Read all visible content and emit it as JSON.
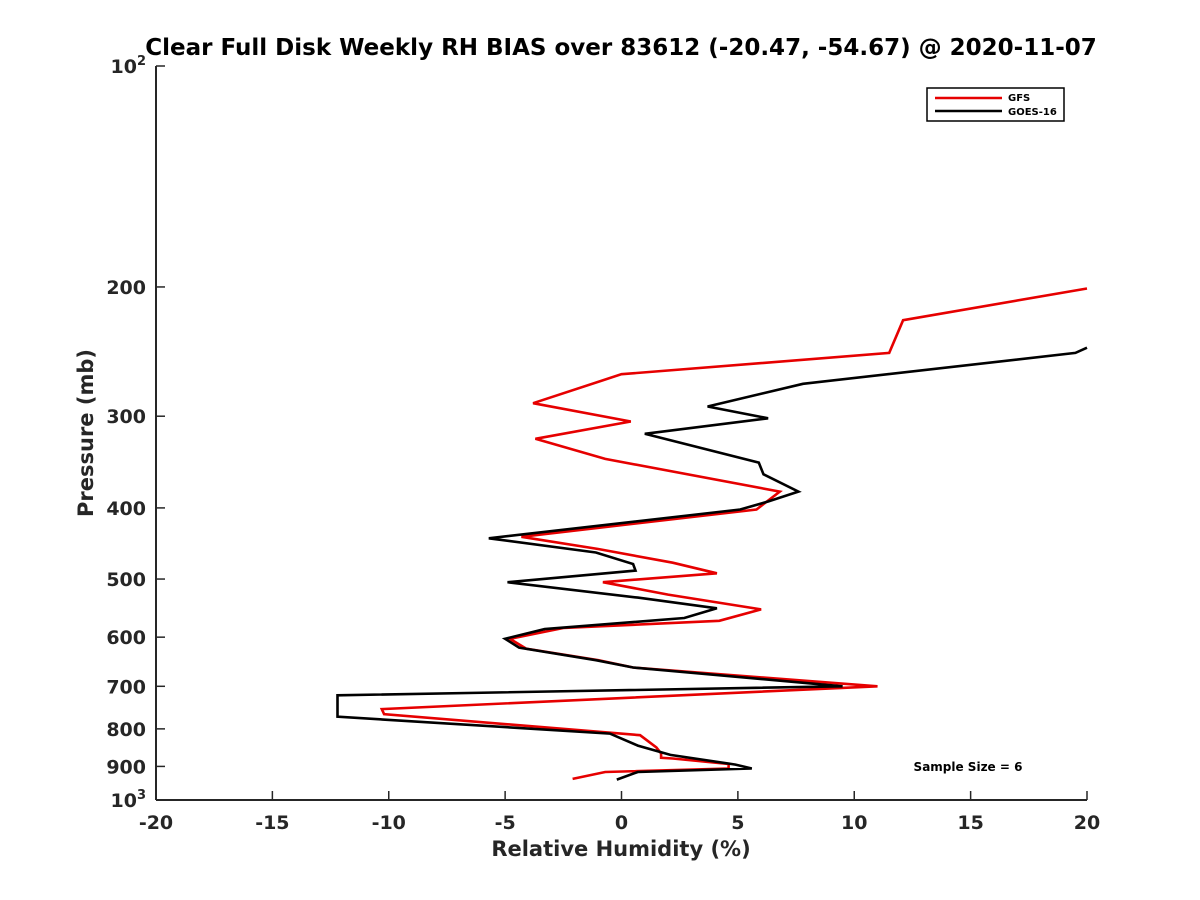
{
  "chart_data": {
    "type": "line",
    "title": "Clear Full Disk Weekly RH BIAS over 83612 (-20.47, -54.67) @ 2020-11-07",
    "xlabel": "Relative Humidity (%)",
    "ylabel": "Pressure (mb)",
    "xlim": [
      -20,
      20
    ],
    "ylim": [
      1000,
      100
    ],
    "yscale": "log",
    "y_reversed": true,
    "grid": false,
    "legend_position": "top-right",
    "x_ticks": [
      "-20",
      "-15",
      "-10",
      "-5",
      "0",
      "5",
      "10",
      "15",
      "20"
    ],
    "y_ticks": [
      {
        "value": 100,
        "base": "10",
        "exp": "2"
      },
      {
        "value": 200,
        "label": "200"
      },
      {
        "value": 300,
        "label": "300"
      },
      {
        "value": 400,
        "label": "400"
      },
      {
        "value": 500,
        "label": "500"
      },
      {
        "value": 600,
        "label": "600"
      },
      {
        "value": 700,
        "label": "700"
      },
      {
        "value": 800,
        "label": "800"
      },
      {
        "value": 900,
        "label": "900"
      },
      {
        "value": 1000,
        "base": "10",
        "exp": "3"
      }
    ],
    "series": [
      {
        "name": "GFS",
        "color": "#e60000",
        "points": [
          [
            20.0,
            201
          ],
          [
            12.1,
            222
          ],
          [
            11.5,
            246
          ],
          [
            0.0,
            263
          ],
          [
            -3.8,
            288
          ],
          [
            0.4,
            305
          ],
          [
            -3.7,
            322
          ],
          [
            -0.7,
            343
          ],
          [
            6.8,
            380
          ],
          [
            5.8,
            402
          ],
          [
            -4.3,
            438
          ],
          [
            -1.0,
            455
          ],
          [
            2.2,
            475
          ],
          [
            4.1,
            491
          ],
          [
            -0.8,
            505
          ],
          [
            2.0,
            525
          ],
          [
            6.0,
            550
          ],
          [
            4.2,
            570
          ],
          [
            -2.5,
            583
          ],
          [
            -4.8,
            603
          ],
          [
            -4.1,
            622
          ],
          [
            -1.0,
            645
          ],
          [
            0.5,
            660
          ],
          [
            11.0,
            700
          ],
          [
            -10.3,
            752
          ],
          [
            -10.2,
            764
          ],
          [
            0.8,
            816
          ],
          [
            1.5,
            848
          ],
          [
            1.7,
            864
          ],
          [
            1.7,
            876
          ],
          [
            2.2,
            878
          ],
          [
            4.6,
            893
          ],
          [
            4.6,
            906
          ],
          [
            -0.7,
            916
          ],
          [
            -2.1,
            936
          ]
        ]
      },
      {
        "name": "GOES-16",
        "color": "#000000",
        "points": [
          [
            20.0,
            242
          ],
          [
            19.5,
            246
          ],
          [
            7.8,
            271
          ],
          [
            3.7,
            291
          ],
          [
            6.3,
            302
          ],
          [
            1.0,
            317
          ],
          [
            5.9,
            347
          ],
          [
            6.1,
            360
          ],
          [
            7.6,
            380
          ],
          [
            6.3,
            392
          ],
          [
            5.1,
            402
          ],
          [
            -5.7,
            440
          ],
          [
            -1.1,
            460
          ],
          [
            0.5,
            477
          ],
          [
            0.6,
            487
          ],
          [
            -4.9,
            505
          ],
          [
            0.7,
            530
          ],
          [
            4.1,
            548
          ],
          [
            2.7,
            565
          ],
          [
            -3.3,
            585
          ],
          [
            -5.0,
            603
          ],
          [
            -4.4,
            620
          ],
          [
            -1.1,
            645
          ],
          [
            0.5,
            660
          ],
          [
            9.5,
            700
          ],
          [
            -12.2,
            720
          ],
          [
            -12.2,
            770
          ],
          [
            -0.5,
            812
          ],
          [
            0.7,
            843
          ],
          [
            2.1,
            868
          ],
          [
            4.9,
            895
          ],
          [
            5.6,
            906
          ],
          [
            0.7,
            916
          ],
          [
            -0.2,
            938
          ]
        ]
      }
    ],
    "annotation": "Sample Size = 6"
  }
}
